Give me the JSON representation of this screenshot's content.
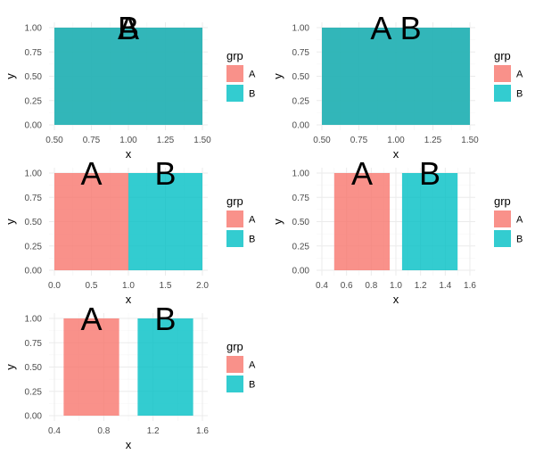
{
  "colors": {
    "A": "#F8766D",
    "B": "#00BFC4"
  },
  "legend": {
    "title": "grp",
    "entries": [
      "A",
      "B"
    ]
  },
  "chart_data": [
    {
      "type": "bar",
      "xlabel": "x",
      "ylabel": "y",
      "xlim": [
        0.5,
        1.5
      ],
      "ylim": [
        0,
        1
      ],
      "xticks": [
        0.5,
        0.75,
        1.0,
        1.25,
        1.5
      ],
      "xtick_labels": [
        "0.50",
        "0.75",
        "1.00",
        "1.25",
        "1.50"
      ],
      "yticks": [
        0,
        0.25,
        0.5,
        0.75,
        1.0
      ],
      "ytick_labels": [
        "0.00",
        "0.25",
        "0.50",
        "0.75",
        "1.00"
      ],
      "bars": [
        {
          "group": "A",
          "x": 1,
          "width": 1,
          "y": 1
        },
        {
          "group": "B",
          "x": 1,
          "width": 1,
          "y": 1
        }
      ],
      "labels": [
        {
          "text": "A",
          "x": 1,
          "y": 1
        },
        {
          "text": "B",
          "x": 1,
          "y": 1
        }
      ]
    },
    {
      "type": "bar",
      "xlabel": "x",
      "ylabel": "y",
      "xlim": [
        0.5,
        1.5
      ],
      "ylim": [
        0,
        1
      ],
      "xticks": [
        0.5,
        0.75,
        1.0,
        1.25,
        1.5
      ],
      "xtick_labels": [
        "0.50",
        "0.75",
        "1.00",
        "1.25",
        "1.50"
      ],
      "yticks": [
        0,
        0.25,
        0.5,
        0.75,
        1.0
      ],
      "ytick_labels": [
        "0.00",
        "0.25",
        "0.50",
        "0.75",
        "1.00"
      ],
      "bars": [
        {
          "group": "A",
          "x": 1,
          "width": 1,
          "y": 1
        },
        {
          "group": "B",
          "x": 1,
          "width": 1,
          "y": 1
        }
      ],
      "labels": [
        {
          "text": "A",
          "x": 0.9,
          "y": 1
        },
        {
          "text": "B",
          "x": 1.1,
          "y": 1
        }
      ]
    },
    {
      "type": "bar",
      "xlabel": "x",
      "ylabel": "y",
      "xlim": [
        0,
        2
      ],
      "ylim": [
        0,
        1
      ],
      "xticks": [
        0,
        0.5,
        1.0,
        1.5,
        2.0
      ],
      "xtick_labels": [
        "0.0",
        "0.5",
        "1.0",
        "1.5",
        "2.0"
      ],
      "yticks": [
        0,
        0.25,
        0.5,
        0.75,
        1.0
      ],
      "ytick_labels": [
        "0.00",
        "0.25",
        "0.50",
        "0.75",
        "1.00"
      ],
      "bars": [
        {
          "group": "A",
          "x": 0.5,
          "width": 1,
          "y": 1
        },
        {
          "group": "B",
          "x": 1.5,
          "width": 1,
          "y": 1
        }
      ],
      "labels": [
        {
          "text": "A",
          "x": 0.5,
          "y": 1
        },
        {
          "text": "B",
          "x": 1.5,
          "y": 1
        }
      ]
    },
    {
      "type": "bar",
      "xlabel": "x",
      "ylabel": "y",
      "xlim": [
        0.4,
        1.6
      ],
      "ylim": [
        0,
        1
      ],
      "xticks": [
        0.4,
        0.6,
        0.8,
        1.0,
        1.2,
        1.4,
        1.6
      ],
      "xtick_labels": [
        "0.4",
        "0.6",
        "0.8",
        "1.0",
        "1.2",
        "1.4",
        "1.6"
      ],
      "yticks": [
        0,
        0.25,
        0.5,
        0.75,
        1.0
      ],
      "ytick_labels": [
        "0.00",
        "0.25",
        "0.50",
        "0.75",
        "1.00"
      ],
      "bars": [
        {
          "group": "A",
          "x": 0.725,
          "width": 0.45,
          "y": 1
        },
        {
          "group": "B",
          "x": 1.275,
          "width": 0.45,
          "y": 1
        }
      ],
      "labels": [
        {
          "text": "A",
          "x": 0.725,
          "y": 1
        },
        {
          "text": "B",
          "x": 1.275,
          "y": 1
        }
      ]
    },
    {
      "type": "bar",
      "xlabel": "x",
      "ylabel": "y",
      "xlim": [
        0.4,
        1.6
      ],
      "ylim": [
        0,
        1
      ],
      "xticks": [
        0.4,
        0.8,
        1.2,
        1.6
      ],
      "xtick_labels": [
        "0.4",
        "0.8",
        "1.2",
        "1.6"
      ],
      "yticks": [
        0,
        0.25,
        0.5,
        0.75,
        1.0
      ],
      "ytick_labels": [
        "0.00",
        "0.25",
        "0.50",
        "0.75",
        "1.00"
      ],
      "bars": [
        {
          "group": "A",
          "x": 0.7,
          "width": 0.45,
          "y": 1
        },
        {
          "group": "B",
          "x": 1.3,
          "width": 0.45,
          "y": 1
        }
      ],
      "labels": [
        {
          "text": "A",
          "x": 0.7,
          "y": 1
        },
        {
          "text": "B",
          "x": 1.3,
          "y": 1
        }
      ]
    }
  ]
}
